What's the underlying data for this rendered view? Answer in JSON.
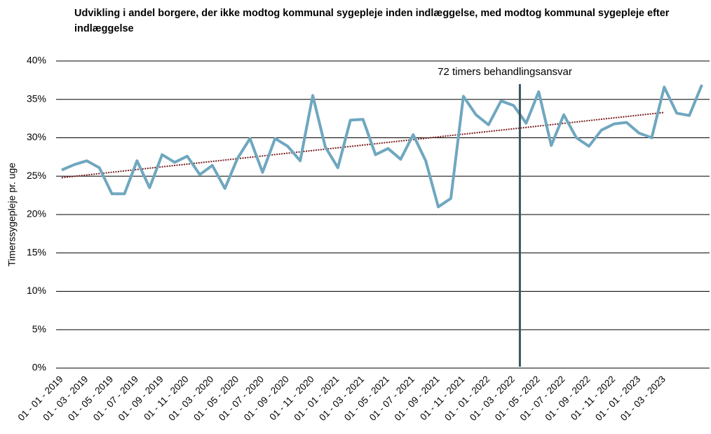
{
  "chart_data": {
    "type": "line",
    "title": "Udvikling i andel borgere, der ikke modtog kommunal sygepleje inden indlæggelse, med modtog kommunal sygepleje efter indlæggelse",
    "ylabel": "Timerssygepleje pr. uge",
    "categories": [
      "01 - 01 - 2019",
      null,
      "01 - 03 - 2019",
      null,
      "01 - 05 - 2019",
      null,
      "01 - 07 - 2019",
      null,
      "01 - 09 - 2019",
      null,
      "01 - 11 - 2020",
      null,
      "01 - 03 - 2020",
      null,
      "01 - 05 - 2020",
      null,
      "01 - 07 - 2020",
      null,
      "01 - 09 - 2020",
      null,
      "01 - 11 - 2020",
      null,
      "01 - 01 - 2021",
      null,
      "01 - 03 - 2021",
      null,
      "01 - 05 - 2021",
      null,
      "01 - 07 - 2021",
      null,
      "01 - 09 - 2021",
      null,
      "01 - 11 - 2021",
      null,
      "01 - 01 - 2022",
      null,
      "01 - 03 - 2022",
      null,
      "01 - 05 - 2022",
      null,
      "01 - 07 - 2022",
      null,
      "01 - 09 - 2022",
      null,
      "01 - 11 - 2022",
      null,
      "01 - 01 - 2023",
      null,
      "01 - 03 - 2023",
      null,
      null,
      null
    ],
    "series": [
      {
        "color": "#6fa7bf",
        "values": [
          25.8,
          26.5,
          27.0,
          26.1,
          22.7,
          22.7,
          27.0,
          23.5,
          27.8,
          26.8,
          27.6,
          25.2,
          26.4,
          23.4,
          27.3,
          29.9,
          25.5,
          29.9,
          28.9,
          27.0,
          35.5,
          28.8,
          26.1,
          32.3,
          32.4,
          27.8,
          28.6,
          27.2,
          30.4,
          27.0,
          21.0,
          22.1,
          35.4,
          33.0,
          31.7,
          34.8,
          34.2,
          31.9,
          36.0,
          29.0,
          33.0,
          30.0,
          28.9,
          31.0,
          31.8,
          32.0,
          30.6,
          30.0,
          36.6,
          33.2,
          32.9,
          36.9
        ]
      }
    ],
    "trendline": {
      "color": "#7a1f1f",
      "values": [
        24.8,
        33.3
      ]
    },
    "annotation": {
      "text": "72 timers behandlingsansvar",
      "index": 36.5,
      "color": "#3b5560"
    },
    "ylim": [
      0,
      40
    ],
    "yticks": [
      {
        "value": 0,
        "label": "0%"
      },
      {
        "value": 5,
        "label": "5%"
      },
      {
        "value": 10,
        "label": "10%"
      },
      {
        "value": 15,
        "label": "15%"
      },
      {
        "value": 20,
        "label": "20%"
      },
      {
        "value": 25,
        "label": "25%"
      },
      {
        "value": 30,
        "label": "30%"
      },
      {
        "value": 35,
        "label": "35%"
      },
      {
        "value": 40,
        "label": "40%"
      }
    ],
    "grid": true
  }
}
